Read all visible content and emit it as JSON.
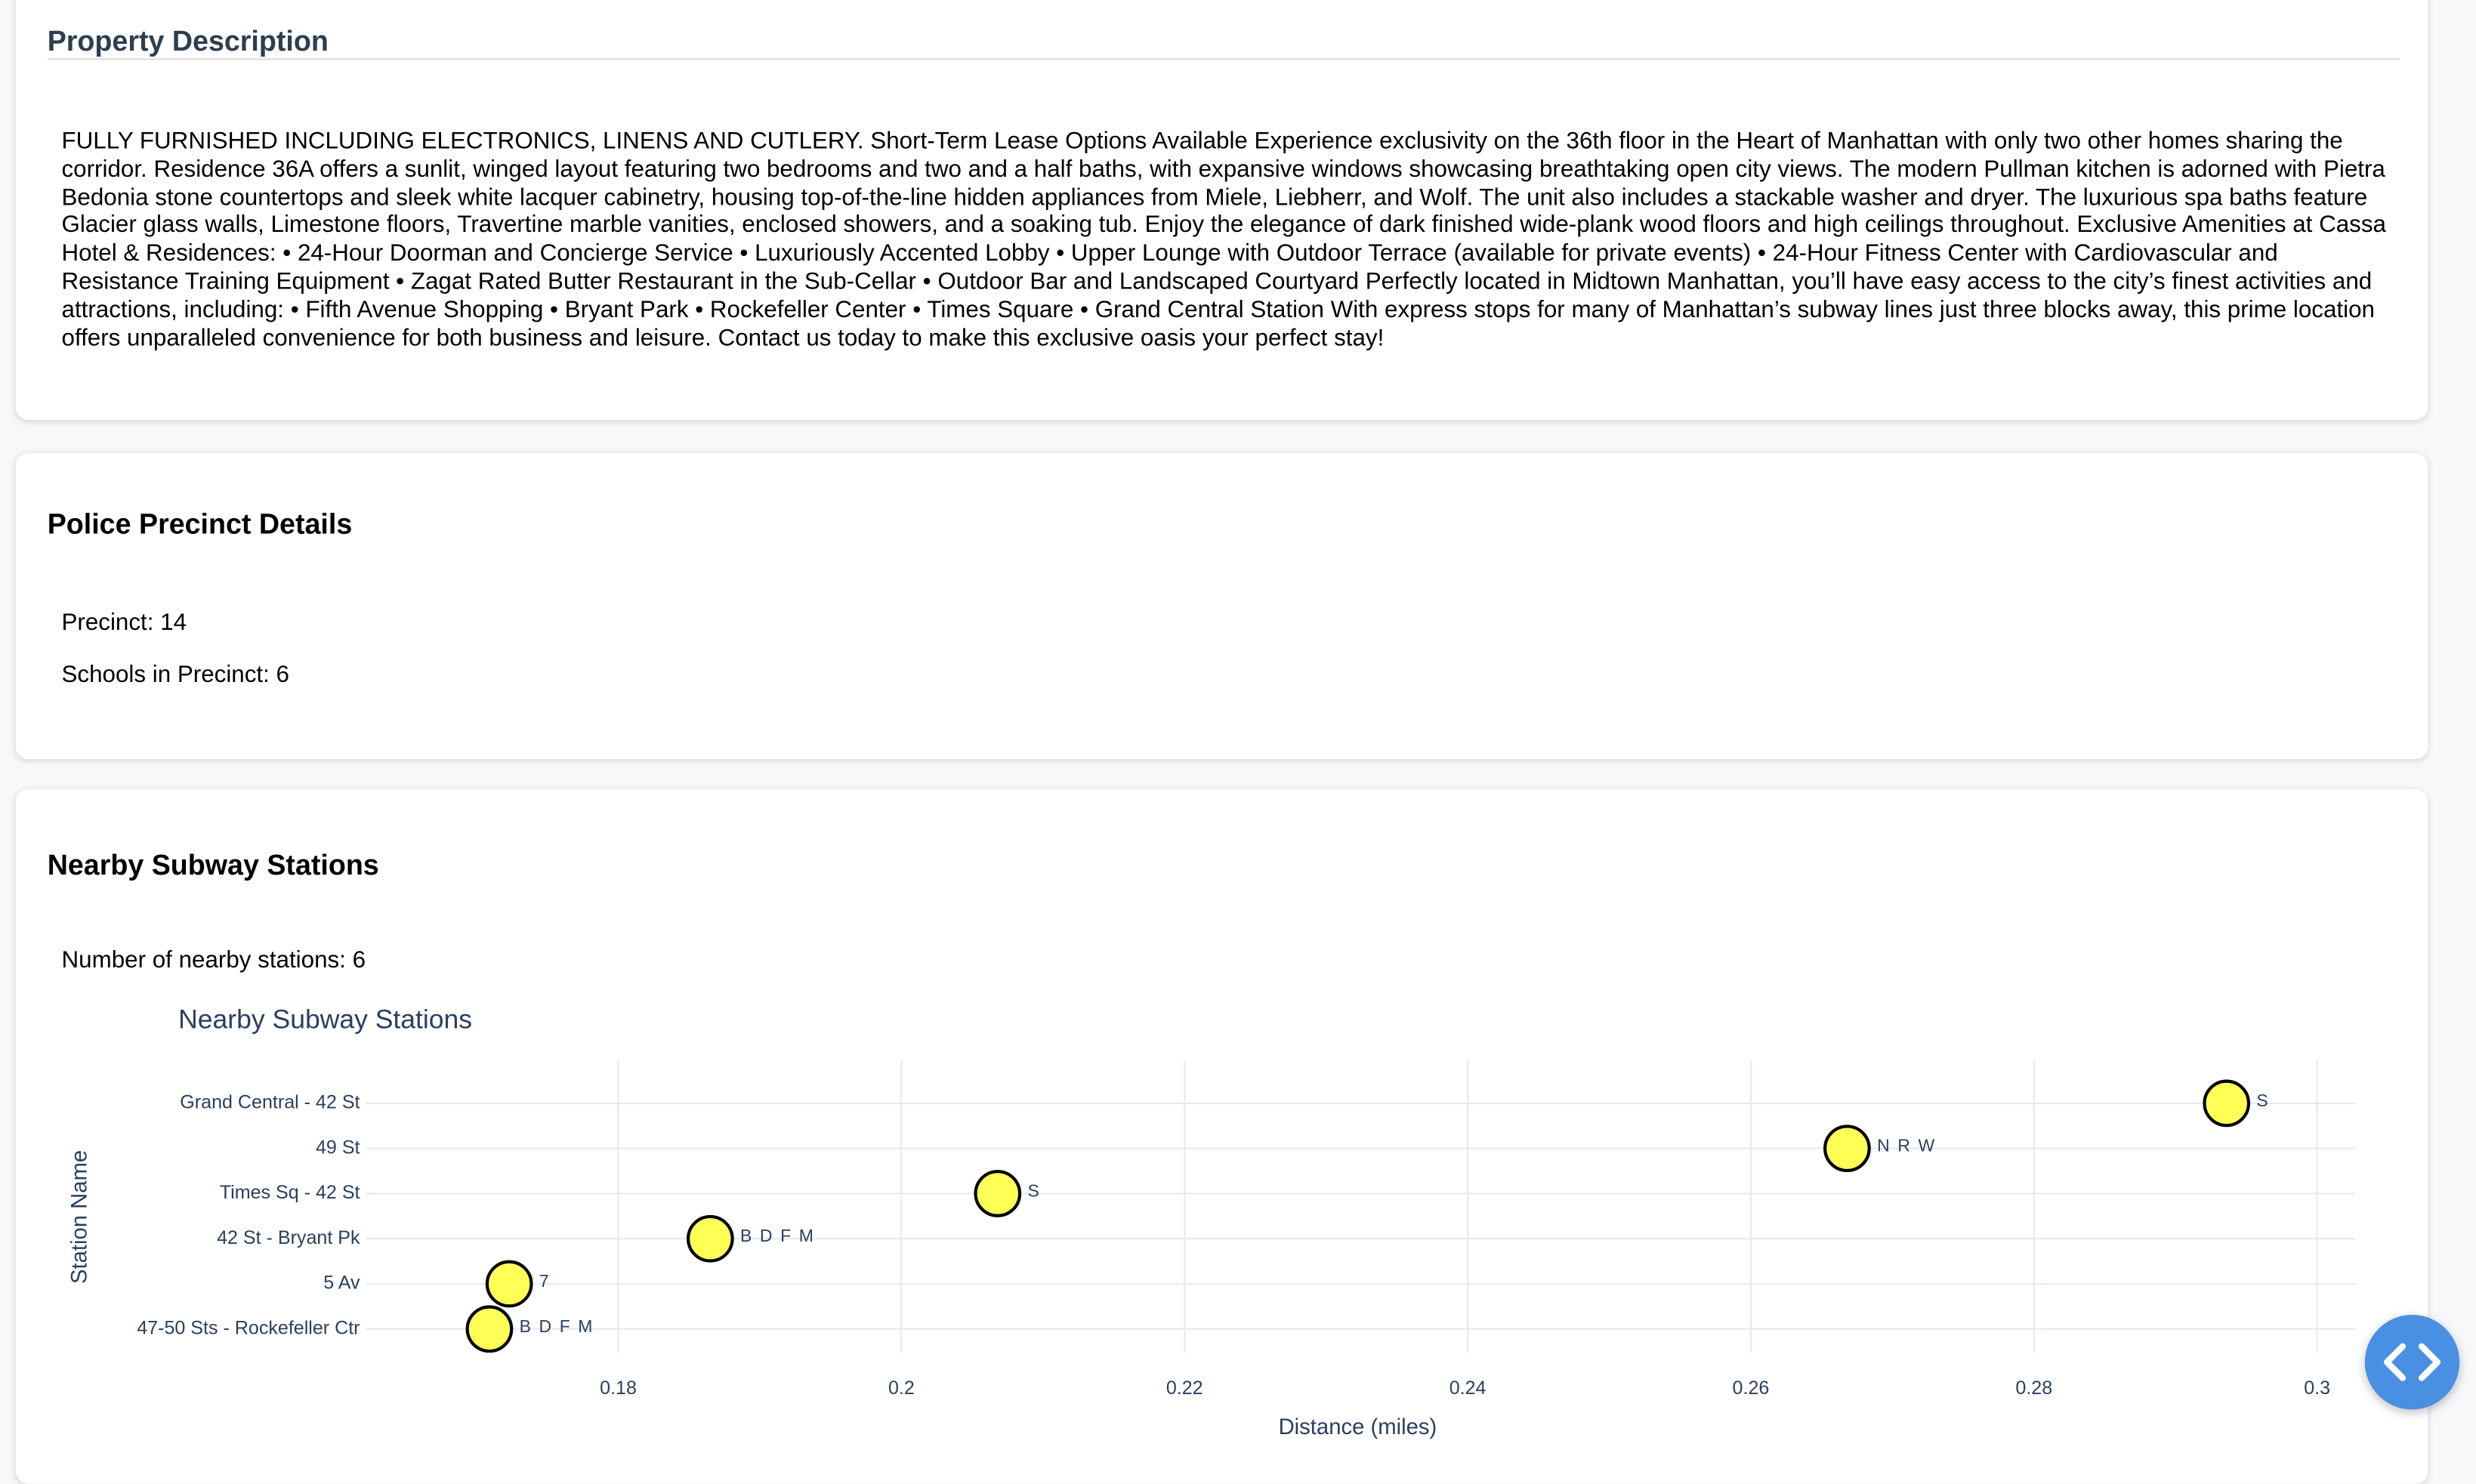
{
  "property": {
    "title": "Property Description",
    "description": "FULLY FURNISHED INCLUDING ELECTRONICS, LINENS AND CUTLERY. Short-Term Lease Options Available Experience exclusivity on the 36th floor in the Heart of Manhattan with only two other homes sharing the corridor. Residence 36A offers a sunlit, winged layout featuring two bedrooms and two and a half baths, with expansive windows showcasing breathtaking open city views. The modern Pullman kitchen is adorned with Pietra Bedonia stone countertops and sleek white lacquer cabinetry, housing top-of-the-line hidden appliances from Miele, Liebherr, and Wolf. The unit also includes a stackable washer and dryer. The luxurious spa baths feature Glacier glass walls, Limestone floors, Travertine marble vanities, enclosed showers, and a soaking tub. Enjoy the elegance of dark finished wide-plank wood floors and high ceilings throughout. Exclusive Amenities at Cassa Hotel & Residences: • 24-Hour Doorman and Concierge Service • Luxuriously Accented Lobby • Upper Lounge with Outdoor Terrace (available for private events) • 24-Hour Fitness Center with Cardiovascular and Resistance Training Equipment • Zagat Rated Butter Restaurant in the Sub-Cellar • Outdoor Bar and Landscaped Courtyard Perfectly located in Midtown Manhattan, you’ll have easy access to the city’s finest activities and attractions, including: • Fifth Avenue Shopping • Bryant Park • Rockefeller Center • Times Square • Grand Central Station With express stops for many of Manhattan’s subway lines just three blocks away, this prime location offers unparalleled convenience for both business and leisure. Contact us today to make this exclusive oasis your perfect stay!"
  },
  "police": {
    "title": "Police Precinct Details",
    "precinct": "Precinct: 14",
    "schools": "Schools in Precinct: 6"
  },
  "subway": {
    "title": "Nearby Subway Stations",
    "count": "Number of nearby stations: 6"
  },
  "chart_data": {
    "type": "scatter",
    "title": "Nearby Subway Stations",
    "x_label": "Distance (miles)",
    "y_label": "Station Name",
    "categories": [
      "Grand Central - 42 St",
      "49 St",
      "Times Sq - 42 St",
      "42 St - Bryant Pk",
      "5 Av",
      "47-50 Sts - Rockefeller Ctr"
    ],
    "values": [
      0.2936,
      0.2668,
      0.2068,
      0.1865,
      0.1723,
      0.1709
    ],
    "point_labels": [
      "S",
      "N R W",
      "S",
      "B D F M",
      "7",
      "B D F M"
    ],
    "color": "#ffff55",
    "xlim": [
      0.1622,
      0.3027
    ],
    "xticks": [
      0.18,
      0.2,
      0.22,
      0.24,
      0.26,
      0.28,
      0.3
    ],
    "grid": true
  }
}
